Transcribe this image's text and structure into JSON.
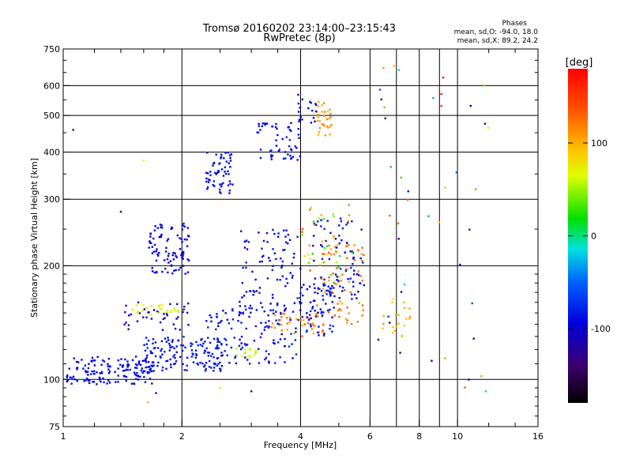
{
  "chart_data": {
    "type": "scatter",
    "title": "Tromsø 20160202 23:14:00–23:15:43",
    "subtitle": "RwPretec (8p)",
    "xlabel": "Frequency [MHz]",
    "ylabel": "Stationary phase Virtual Height [km]",
    "xscale": "log",
    "yscale": "log",
    "xlim": [
      1,
      16
    ],
    "ylim": [
      75,
      750
    ],
    "x_ticks": [
      1,
      2,
      4,
      6,
      8,
      10,
      16
    ],
    "x_gridlines": [
      2,
      4,
      6,
      7,
      8,
      9,
      10
    ],
    "y_ticks": [
      75,
      100,
      200,
      300,
      400,
      500,
      600,
      750
    ],
    "y_gridlines": [
      100,
      200,
      300,
      400,
      500,
      600
    ],
    "grid": true,
    "colorbar": {
      "label": "[deg]",
      "range": [
        -180,
        180
      ],
      "ticks": [
        100,
        0,
        -100
      ]
    },
    "stats": {
      "header": "Phases",
      "line_o": "mean, sd,O: -94.0, 18.0",
      "line_x": "mean, sd,X:  89.2, 24.2"
    },
    "clusters": [
      {
        "x": [
          1.02,
          1.7
        ],
        "y": [
          97,
          115
        ],
        "phase": [
          -100,
          -85
        ],
        "n": 150
      },
      {
        "x": [
          1.6,
          2.6
        ],
        "y": [
          105,
          130
        ],
        "phase": [
          -95,
          -80
        ],
        "n": 140
      },
      {
        "x": [
          1.4,
          2.1
        ],
        "y": [
          135,
          160
        ],
        "phase": [
          -120,
          -90
        ],
        "n": 40
      },
      {
        "x": [
          1.5,
          2.0
        ],
        "y": [
          148,
          158
        ],
        "phase": [
          60,
          70
        ],
        "n": 25
      },
      {
        "x": [
          1.65,
          2.1
        ],
        "y": [
          190,
          260
        ],
        "phase": [
          -105,
          -90
        ],
        "n": 90
      },
      {
        "x": [
          2.3,
          3.9
        ],
        "y": [
          110,
          155
        ],
        "phase": [
          -100,
          -75
        ],
        "n": 120
      },
      {
        "x": [
          2.7,
          3.1
        ],
        "y": [
          115,
          122
        ],
        "phase": [
          50,
          70
        ],
        "n": 15
      },
      {
        "x": [
          2.3,
          2.7
        ],
        "y": [
          310,
          400
        ],
        "phase": [
          -100,
          -80
        ],
        "n": 60
      },
      {
        "x": [
          2.8,
          4.0
        ],
        "y": [
          150,
          250
        ],
        "phase": [
          -110,
          -80
        ],
        "n": 90
      },
      {
        "x": [
          3.1,
          4.0
        ],
        "y": [
          380,
          480
        ],
        "phase": [
          -100,
          -80
        ],
        "n": 55
      },
      {
        "x": [
          3.3,
          4.6
        ],
        "y": [
          130,
          150
        ],
        "phase": [
          100,
          130
        ],
        "n": 45
      },
      {
        "x": [
          3.9,
          4.9
        ],
        "y": [
          130,
          180
        ],
        "phase": [
          -100,
          -70
        ],
        "n": 70
      },
      {
        "x": [
          4.4,
          5.8
        ],
        "y": [
          140,
          230
        ],
        "phase": [
          100,
          140
        ],
        "n": 70
      },
      {
        "x": [
          4.3,
          5.8
        ],
        "y": [
          160,
          270
        ],
        "phase": [
          -100,
          -80
        ],
        "n": 80
      },
      {
        "x": [
          4.0,
          5.5
        ],
        "y": [
          180,
          290
        ],
        "phase": [
          0,
          140
        ],
        "n": 40
      },
      {
        "x": [
          4.4,
          4.8
        ],
        "y": [
          440,
          550
        ],
        "phase": [
          95,
          120
        ],
        "n": 30
      },
      {
        "x": [
          3.9,
          4.4
        ],
        "y": [
          470,
          570
        ],
        "phase": [
          -100,
          -80
        ],
        "n": 20
      },
      {
        "x": [
          6.3,
          7.6
        ],
        "y": [
          130,
          160
        ],
        "phase": [
          90,
          110
        ],
        "n": 18
      },
      {
        "x": [
          6.2,
          7.6
        ],
        "y": [
          90,
          680
        ],
        "phase": [
          -160,
          140
        ],
        "n": 22
      },
      {
        "x": [
          8.3,
          12.0
        ],
        "y": [
          90,
          680
        ],
        "phase": [
          -160,
          160
        ],
        "n": 16
      }
    ],
    "series_points": [
      {
        "x": 9.2,
        "y": 630,
        "phase": 170
      },
      {
        "x": 9.1,
        "y": 570,
        "phase": 160
      },
      {
        "x": 9.1,
        "y": 530,
        "phase": 150
      },
      {
        "x": 7.1,
        "y": 660,
        "phase": -20
      },
      {
        "x": 10.8,
        "y": 530,
        "phase": -100
      },
      {
        "x": 11.7,
        "y": 600,
        "phase": 40
      },
      {
        "x": 11.8,
        "y": 93,
        "phase": -20
      },
      {
        "x": 8.6,
        "y": 112,
        "phase": -110
      },
      {
        "x": 1.06,
        "y": 458,
        "phase": -100
      },
      {
        "x": 1.4,
        "y": 278,
        "phase": -110
      },
      {
        "x": 1.6,
        "y": 380,
        "phase": 70
      },
      {
        "x": 1.64,
        "y": 87,
        "phase": 100
      },
      {
        "x": 1.72,
        "y": 92,
        "phase": -100
      },
      {
        "x": 2.5,
        "y": 95,
        "phase": 60
      },
      {
        "x": 3.0,
        "y": 93,
        "phase": -110
      }
    ]
  }
}
